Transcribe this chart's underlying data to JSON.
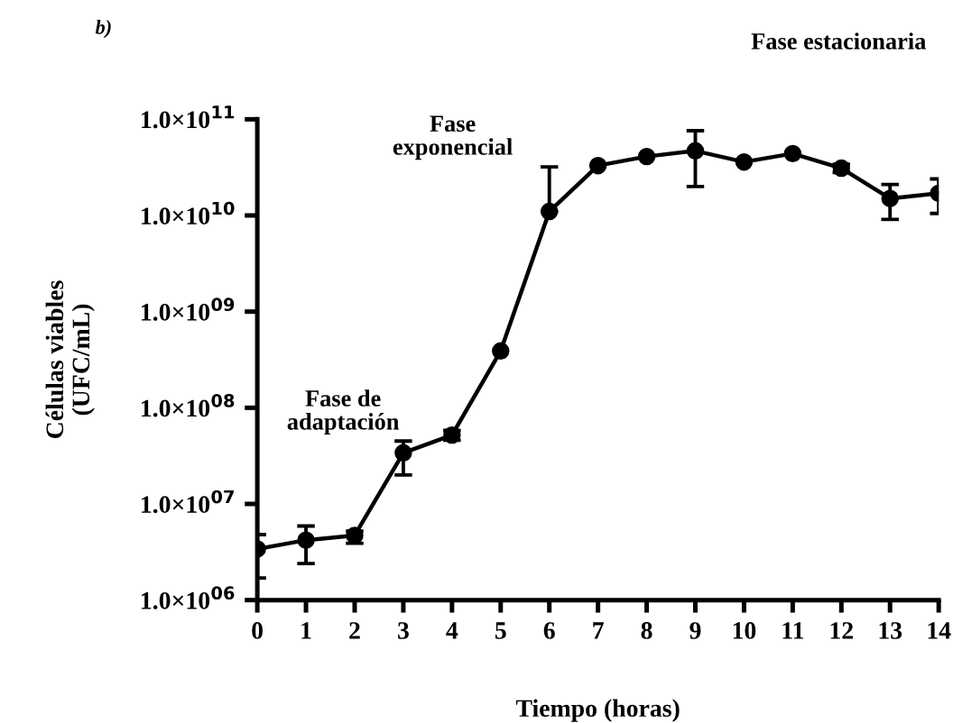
{
  "chart_data": {
    "type": "line",
    "xlabel": "Tiempo (horas)",
    "ylabel": "Células viables\n(UFC/mL)",
    "x": [
      0,
      1,
      2,
      3,
      4,
      5,
      6,
      7,
      8,
      9,
      10,
      11,
      12,
      13,
      14
    ],
    "series": [
      {
        "color": "#000000",
        "values": [
          3400000.0,
          4200000.0,
          4700000.0,
          34000000.0,
          52000000.0,
          390000000.0,
          11000000000.0,
          33000000000.0,
          41000000000.0,
          47000000000.0,
          36000000000.0,
          44000000000.0,
          31000000000.0,
          15000000000.0,
          17000000000.0
        ],
        "errors": [
          [
            1700000.0,
            4800000.0
          ],
          [
            2400000.0,
            5900000.0
          ],
          [
            3900000.0,
            5200000.0
          ],
          [
            20000000.0,
            45000000.0
          ],
          [
            46000000.0,
            58000000.0
          ],
          null,
          [
            11000000000.0,
            32000000000.0
          ],
          null,
          null,
          [
            20000000000.0,
            76000000000.0
          ],
          null,
          null,
          [
            28000000000.0,
            34000000000.0
          ],
          [
            9100000000.0,
            21000000000.0
          ],
          [
            10500000000.0,
            24000000000.0
          ]
        ]
      }
    ],
    "log": true,
    "marker": "circle",
    "line_style": "solid",
    "grid": false,
    "legend": false,
    "xlim": [
      0,
      14
    ],
    "xticks": [
      0,
      1,
      2,
      3,
      4,
      5,
      6,
      7,
      8,
      9,
      10,
      11,
      12,
      13,
      14
    ],
    "ylim": [
      1000000.0,
      100000000000.0
    ],
    "yticks": [
      {
        "value": 1000000.0,
        "label": "1.0×10$^{06}$"
      },
      {
        "value": 10000000.0,
        "label": "1.0×10$^{07}$"
      },
      {
        "value": 100000000.0,
        "label": "1.0×10$^{08}$"
      },
      {
        "value": 1000000000.0,
        "label": "1.0×10$^{09}$"
      },
      {
        "value": 10000000000.0,
        "label": "1.0×10$^{10}$"
      },
      {
        "value": 100000000000.0,
        "label": "1.0×10$^{11}$"
      }
    ],
    "annotations": [
      "b)",
      "Fase de\nadaptación",
      "Fase\nexponencial",
      "Fase estacionaria"
    ]
  }
}
